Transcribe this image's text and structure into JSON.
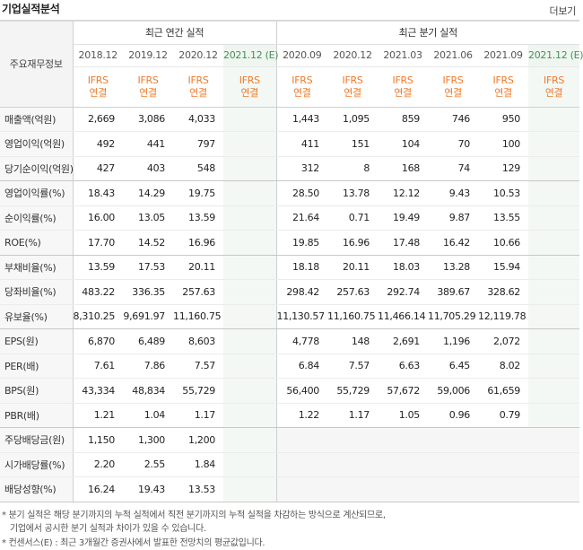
{
  "title": "기업실적분석",
  "more_label": "더보기",
  "row_header_label": "주요재무정보",
  "groups": {
    "annual": "최근 연간 실적",
    "quarter": "최근 분기 실적"
  },
  "periods": [
    {
      "label": "2018.12",
      "ifrs": [
        "IFRS",
        "연결"
      ],
      "estimate": false
    },
    {
      "label": "2019.12",
      "ifrs": [
        "IFRS",
        "연결"
      ],
      "estimate": false
    },
    {
      "label": "2020.12",
      "ifrs": [
        "IFRS",
        "연결"
      ],
      "estimate": false
    },
    {
      "label": "2021.12 (E)",
      "ifrs": [
        "IFRS",
        "연결"
      ],
      "estimate": true
    },
    {
      "label": "2020.09",
      "ifrs": [
        "IFRS",
        "연결"
      ],
      "estimate": false
    },
    {
      "label": "2020.12",
      "ifrs": [
        "IFRS",
        "연결"
      ],
      "estimate": false
    },
    {
      "label": "2021.03",
      "ifrs": [
        "IFRS",
        "연결"
      ],
      "estimate": false
    },
    {
      "label": "2021.06",
      "ifrs": [
        "IFRS",
        "연결"
      ],
      "estimate": false
    },
    {
      "label": "2021.09",
      "ifrs": [
        "IFRS",
        "연결"
      ],
      "estimate": false
    },
    {
      "label": "2021.12 (E)",
      "ifrs": [
        "IFRS",
        "연결"
      ],
      "estimate": true
    }
  ],
  "rows": [
    {
      "label": "매출액(억원)",
      "values": [
        "2,669",
        "3,086",
        "4,033",
        "",
        "1,443",
        "1,095",
        "859",
        "746",
        "950",
        ""
      ]
    },
    {
      "label": "영업이익(억원)",
      "values": [
        "492",
        "441",
        "797",
        "",
        "411",
        "151",
        "104",
        "70",
        "100",
        ""
      ]
    },
    {
      "label": "당기순이익(억원)",
      "values": [
        "427",
        "403",
        "548",
        "",
        "312",
        "8",
        "168",
        "74",
        "129",
        ""
      ],
      "group_end": true
    },
    {
      "label": "영업이익률(%)",
      "values": [
        "18.43",
        "14.29",
        "19.75",
        "",
        "28.50",
        "13.78",
        "12.12",
        "9.43",
        "10.53",
        ""
      ]
    },
    {
      "label": "순이익률(%)",
      "values": [
        "16.00",
        "13.05",
        "13.59",
        "",
        "21.64",
        "0.71",
        "19.49",
        "9.87",
        "13.55",
        ""
      ]
    },
    {
      "label": "ROE(%)",
      "values": [
        "17.70",
        "14.52",
        "16.96",
        "",
        "19.85",
        "16.96",
        "17.48",
        "16.42",
        "10.66",
        ""
      ],
      "group_end": true
    },
    {
      "label": "부채비율(%)",
      "values": [
        "13.59",
        "17.53",
        "20.11",
        "",
        "18.18",
        "20.11",
        "18.03",
        "13.28",
        "15.94",
        ""
      ]
    },
    {
      "label": "당좌비율(%)",
      "values": [
        "483.22",
        "336.35",
        "257.63",
        "",
        "298.42",
        "257.63",
        "292.74",
        "389.67",
        "328.62",
        ""
      ]
    },
    {
      "label": "유보율(%)",
      "values": [
        "8,310.25",
        "9,691.97",
        "11,160.75",
        "",
        "11,130.57",
        "11,160.75",
        "11,466.14",
        "11,705.29",
        "12,119.78",
        ""
      ],
      "group_end": true
    },
    {
      "label": "EPS(원)",
      "values": [
        "6,870",
        "6,489",
        "8,603",
        "",
        "4,778",
        "148",
        "2,691",
        "1,196",
        "2,072",
        ""
      ]
    },
    {
      "label": "PER(배)",
      "values": [
        "7.61",
        "7.86",
        "7.57",
        "",
        "6.84",
        "7.57",
        "6.63",
        "6.45",
        "8.02",
        ""
      ]
    },
    {
      "label": "BPS(원)",
      "values": [
        "43,334",
        "48,834",
        "55,729",
        "",
        "56,400",
        "55,729",
        "57,672",
        "59,006",
        "61,659",
        ""
      ]
    },
    {
      "label": "PBR(배)",
      "values": [
        "1.21",
        "1.04",
        "1.17",
        "",
        "1.22",
        "1.17",
        "1.05",
        "0.96",
        "0.79",
        ""
      ],
      "group_end": true
    },
    {
      "label": "주당배당금(원)",
      "values": [
        "1,150",
        "1,300",
        "1,200",
        "",
        "",
        "",
        "",
        "",
        "",
        ""
      ],
      "grey_quarter": true
    },
    {
      "label": "시가배당률(%)",
      "values": [
        "2.20",
        "2.55",
        "1.84",
        "",
        "",
        "",
        "",
        "",
        "",
        ""
      ],
      "grey_quarter": true
    },
    {
      "label": "배당성향(%)",
      "values": [
        "16.24",
        "19.43",
        "13.53",
        "",
        "",
        "",
        "",
        "",
        "",
        ""
      ],
      "grey_quarter": true,
      "group_end": true
    }
  ],
  "notes": [
    "* 분기 실적은 해당 분기까지의 누적 실적에서 직전 분기까지의 누적 실적을 차감하는 방식으로 계산되므로,",
    "기업에서 공시한 분기 실적과 차이가 있을 수 있습니다.",
    "* 컨센서스(E) : 최근 3개월간 증권사에서 발표한 전망치의 평균값입니다."
  ]
}
